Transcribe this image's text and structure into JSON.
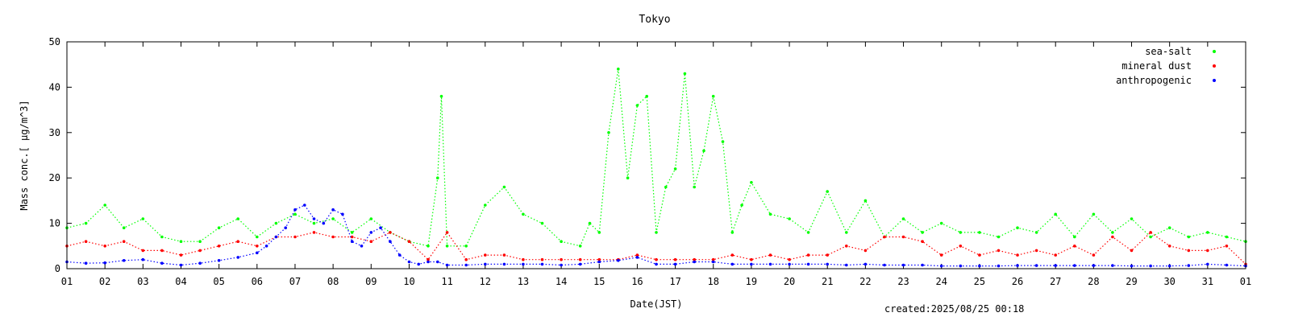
{
  "chart_data": {
    "type": "scatter",
    "title": "Tokyo",
    "xlabel": "Date(JST)",
    "ylabel": "Mass conc.[ μg/m^3]",
    "created_text": "created:2025/08/25 00:18",
    "xlim": [
      1,
      32
    ],
    "ylim": [
      0,
      50
    ],
    "y_ticks": [
      0,
      10,
      20,
      30,
      40,
      50
    ],
    "x_ticks": [
      {
        "value": 1,
        "label": "01"
      },
      {
        "value": 2,
        "label": "02"
      },
      {
        "value": 3,
        "label": "03"
      },
      {
        "value": 4,
        "label": "04"
      },
      {
        "value": 5,
        "label": "05"
      },
      {
        "value": 6,
        "label": "06"
      },
      {
        "value": 7,
        "label": "07"
      },
      {
        "value": 8,
        "label": "08"
      },
      {
        "value": 9,
        "label": "09"
      },
      {
        "value": 10,
        "label": "10"
      },
      {
        "value": 11,
        "label": "11"
      },
      {
        "value": 12,
        "label": "12"
      },
      {
        "value": 13,
        "label": "13"
      },
      {
        "value": 14,
        "label": "14"
      },
      {
        "value": 15,
        "label": "15"
      },
      {
        "value": 16,
        "label": "16"
      },
      {
        "value": 17,
        "label": "17"
      },
      {
        "value": 18,
        "label": "18"
      },
      {
        "value": 19,
        "label": "19"
      },
      {
        "value": 20,
        "label": "20"
      },
      {
        "value": 21,
        "label": "21"
      },
      {
        "value": 22,
        "label": "22"
      },
      {
        "value": 23,
        "label": "23"
      },
      {
        "value": 24,
        "label": "24"
      },
      {
        "value": 25,
        "label": "25"
      },
      {
        "value": 26,
        "label": "26"
      },
      {
        "value": 27,
        "label": "27"
      },
      {
        "value": 28,
        "label": "28"
      },
      {
        "value": 29,
        "label": "29"
      },
      {
        "value": 30,
        "label": "30"
      },
      {
        "value": 31,
        "label": "31"
      },
      {
        "value": 32,
        "label": "01"
      }
    ],
    "legend_position": "top-right",
    "series": [
      {
        "name": "sea-salt",
        "color": "#00ff00",
        "x": [
          1.0,
          1.5,
          2.0,
          2.5,
          3.0,
          3.5,
          4.0,
          4.5,
          5.0,
          5.5,
          6.0,
          6.5,
          7.0,
          7.5,
          8.0,
          8.5,
          9.0,
          9.5,
          10.0,
          10.5,
          10.75,
          10.85,
          11.0,
          11.5,
          12.0,
          12.5,
          13.0,
          13.5,
          14.0,
          14.5,
          14.75,
          15.0,
          15.25,
          15.5,
          15.75,
          16.0,
          16.25,
          16.5,
          16.75,
          17.0,
          17.25,
          17.5,
          17.75,
          18.0,
          18.25,
          18.5,
          18.75,
          19.0,
          19.5,
          20.0,
          20.5,
          21.0,
          21.5,
          22.0,
          22.5,
          23.0,
          23.5,
          24.0,
          24.5,
          25.0,
          25.5,
          26.0,
          26.5,
          27.0,
          27.5,
          28.0,
          28.5,
          29.0,
          29.5,
          30.0,
          30.5,
          31.0,
          31.5,
          32.0
        ],
        "y": [
          9,
          10,
          14,
          9,
          11,
          7,
          6,
          6,
          9,
          11,
          7,
          10,
          12,
          10,
          11,
          8,
          11,
          8,
          6,
          5,
          20,
          38,
          5,
          5,
          14,
          18,
          12,
          10,
          6,
          5,
          10,
          8,
          30,
          44,
          20,
          36,
          38,
          8,
          18,
          22,
          43,
          18,
          26,
          38,
          28,
          8,
          14,
          19,
          12,
          11,
          8,
          17,
          8,
          15,
          7,
          11,
          8,
          10,
          8,
          8,
          7,
          9,
          8,
          12,
          7,
          12,
          8,
          11,
          7,
          9,
          7,
          8,
          7,
          6
        ]
      },
      {
        "name": "mineral dust",
        "color": "#ff0000",
        "x": [
          1.0,
          1.5,
          2.0,
          2.5,
          3.0,
          3.5,
          4.0,
          4.5,
          5.0,
          5.5,
          6.0,
          6.5,
          7.0,
          7.5,
          8.0,
          8.5,
          9.0,
          9.5,
          10.0,
          10.5,
          11.0,
          11.5,
          12.0,
          12.5,
          13.0,
          13.5,
          14.0,
          14.5,
          15.0,
          15.5,
          16.0,
          16.5,
          17.0,
          17.5,
          18.0,
          18.5,
          19.0,
          19.5,
          20.0,
          20.5,
          21.0,
          21.5,
          22.0,
          22.5,
          23.0,
          23.5,
          24.0,
          24.5,
          25.0,
          25.5,
          26.0,
          26.5,
          27.0,
          27.5,
          28.0,
          28.5,
          29.0,
          29.5,
          30.0,
          30.5,
          31.0,
          31.5,
          32.0
        ],
        "y": [
          5,
          6,
          5,
          6,
          4,
          4,
          3,
          4,
          5,
          6,
          5,
          7,
          7,
          8,
          7,
          7,
          6,
          8,
          6,
          2,
          8,
          2,
          3,
          3,
          2,
          2,
          2,
          2,
          2,
          2,
          3,
          2,
          2,
          2,
          2,
          3,
          2,
          3,
          2,
          3,
          3,
          5,
          4,
          7,
          7,
          6,
          3,
          5,
          3,
          4,
          3,
          4,
          3,
          5,
          3,
          7,
          4,
          8,
          5,
          4,
          4,
          5,
          1
        ]
      },
      {
        "name": "anthropogenic",
        "color": "#0000ff",
        "x": [
          1.0,
          1.5,
          2.0,
          2.5,
          3.0,
          3.5,
          4.0,
          4.5,
          5.0,
          5.5,
          6.0,
          6.25,
          6.5,
          6.75,
          7.0,
          7.25,
          7.5,
          7.75,
          8.0,
          8.25,
          8.5,
          8.75,
          9.0,
          9.25,
          9.5,
          9.75,
          10.0,
          10.25,
          10.5,
          10.75,
          11.0,
          11.5,
          12.0,
          12.5,
          13.0,
          13.5,
          14.0,
          14.5,
          15.0,
          15.5,
          16.0,
          16.5,
          17.0,
          17.5,
          18.0,
          18.5,
          19.0,
          19.5,
          20.0,
          20.5,
          21.0,
          21.5,
          22.0,
          22.5,
          23.0,
          23.5,
          24.0,
          24.5,
          25.0,
          25.5,
          26.0,
          26.5,
          27.0,
          27.5,
          28.0,
          28.5,
          29.0,
          29.5,
          30.0,
          30.5,
          31.0,
          31.5,
          32.0
        ],
        "y": [
          1.5,
          1.2,
          1.3,
          1.8,
          2,
          1.2,
          0.8,
          1.2,
          1.8,
          2.5,
          3.5,
          5,
          7,
          9,
          13,
          14,
          11,
          10,
          13,
          12,
          6,
          5,
          8,
          9,
          6,
          3,
          1.5,
          1,
          1.5,
          1.5,
          0.8,
          0.8,
          1,
          1,
          1,
          1,
          0.8,
          1,
          1.5,
          1.8,
          2.5,
          1,
          1,
          1.5,
          1.5,
          1,
          1,
          1,
          1,
          1,
          1,
          0.8,
          1,
          0.8,
          0.8,
          0.8,
          0.6,
          0.6,
          0.6,
          0.6,
          0.7,
          0.7,
          0.7,
          0.7,
          0.7,
          0.7,
          0.6,
          0.6,
          0.6,
          0.7,
          1,
          0.8,
          0.6
        ]
      }
    ]
  }
}
